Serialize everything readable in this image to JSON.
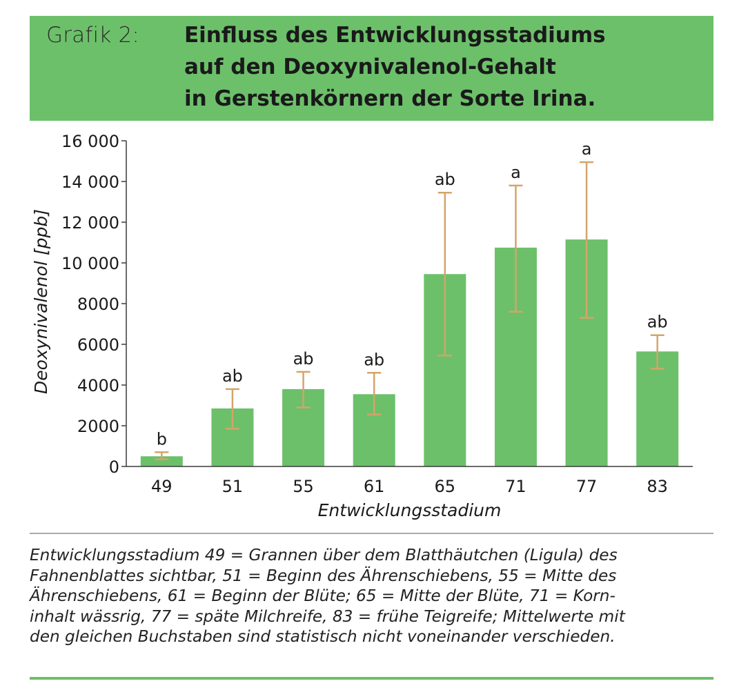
{
  "header": {
    "figure_label": "Grafik 2:",
    "title_lines": [
      "Einfluss des Entwicklungsstadiums",
      "auf den Deoxynivalenol-Gehalt",
      "in Gerstenkörnern der Sorte Irina."
    ]
  },
  "chart_data": {
    "type": "bar",
    "title": "Einfluss des Entwicklungsstadiums auf den Deoxynivalenol-Gehalt in Gerstenkörnern der Sorte Irina.",
    "xlabel": "Entwicklungsstadium",
    "ylabel": "Deoxynivalenol [ppb]",
    "ylim": [
      0,
      16000
    ],
    "yticks": [
      0,
      2000,
      4000,
      6000,
      8000,
      10000,
      12000,
      14000,
      16000
    ],
    "ytick_labels": [
      "0",
      "2000",
      "4000",
      "6000",
      "8000",
      "10 000",
      "12 000",
      "14 000",
      "16 000"
    ],
    "categories": [
      "49",
      "51",
      "55",
      "61",
      "65",
      "71",
      "77",
      "83"
    ],
    "values": [
      500,
      2850,
      3800,
      3550,
      9450,
      10750,
      11150,
      5650
    ],
    "error_low": [
      350,
      1850,
      2900,
      2550,
      5450,
      7600,
      7300,
      4800
    ],
    "error_high": [
      700,
      3800,
      4650,
      4600,
      13450,
      13800,
      14950,
      6450
    ],
    "significance_labels": [
      "b",
      "ab",
      "ab",
      "ab",
      "ab",
      "a",
      "a",
      "ab"
    ],
    "grid": false,
    "bar_color": "#6cc06a",
    "error_color": "#d4a46a"
  },
  "caption_lines": [
    "Entwicklungsstadium 49 = Grannen über dem Blatthäutchen (Ligula) des",
    "Fahnenblattes sichtbar, 51 = Beginn des Ährenschiebens, 55 = Mitte des",
    "Ährenschiebens, 61 = Beginn der Blüte; 65 = Mitte der Blüte, 71 = Korn-",
    "inhalt wässrig, 77 = späte Milchreife, 83 = frühe Teigreife; Mittelwerte mit",
    "den gleichen Buchstaben sind statistisch nicht voneinander verschieden."
  ],
  "colors": {
    "accent_green": "#6cc06a",
    "divider_gray": "#a9a9a9"
  }
}
